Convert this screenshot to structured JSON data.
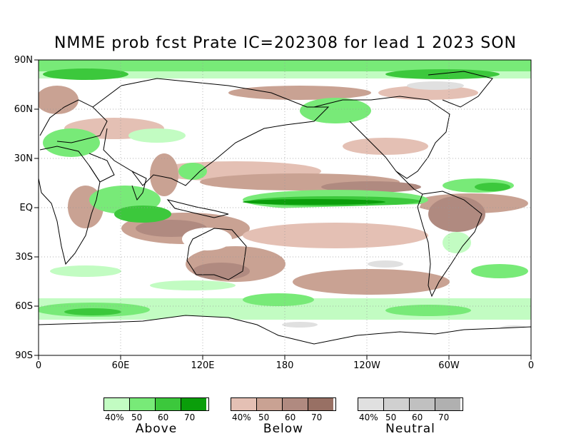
{
  "title": "NMME prob fcst Prate IC=202308 for lead 1 2023 SON",
  "y_ticks": [
    "90N",
    "60N",
    "30N",
    "EQ",
    "30S",
    "60S",
    "90S"
  ],
  "x_ticks": [
    "0",
    "60E",
    "120E",
    "180",
    "120W",
    "60W",
    "0"
  ],
  "legend": [
    {
      "name": "Above",
      "colors": [
        "#c2fcc2",
        "#78ea78",
        "#3cc83c",
        "#0a9e0a"
      ],
      "ticks": [
        "40%",
        "50",
        "60",
        "70"
      ]
    },
    {
      "name": "Below",
      "colors": [
        "#e4c0b4",
        "#c9a293",
        "#b08a80",
        "#987064"
      ],
      "ticks": [
        "40%",
        "50",
        "60",
        "70"
      ]
    },
    {
      "name": "Neutral",
      "colors": [
        "#e0e0e0",
        "#d0d0d0",
        "#c0c0c0",
        "#b0b0b0"
      ],
      "ticks": [
        "40%",
        "50",
        "60",
        "70"
      ]
    }
  ],
  "colors": {
    "above": "#78ea78",
    "above_strong": "#0a9e0a",
    "below": "#c9a293",
    "below_strong": "#987064",
    "neutral": "#d0d0d0",
    "coast": "#000000",
    "grid": "#999999"
  }
}
